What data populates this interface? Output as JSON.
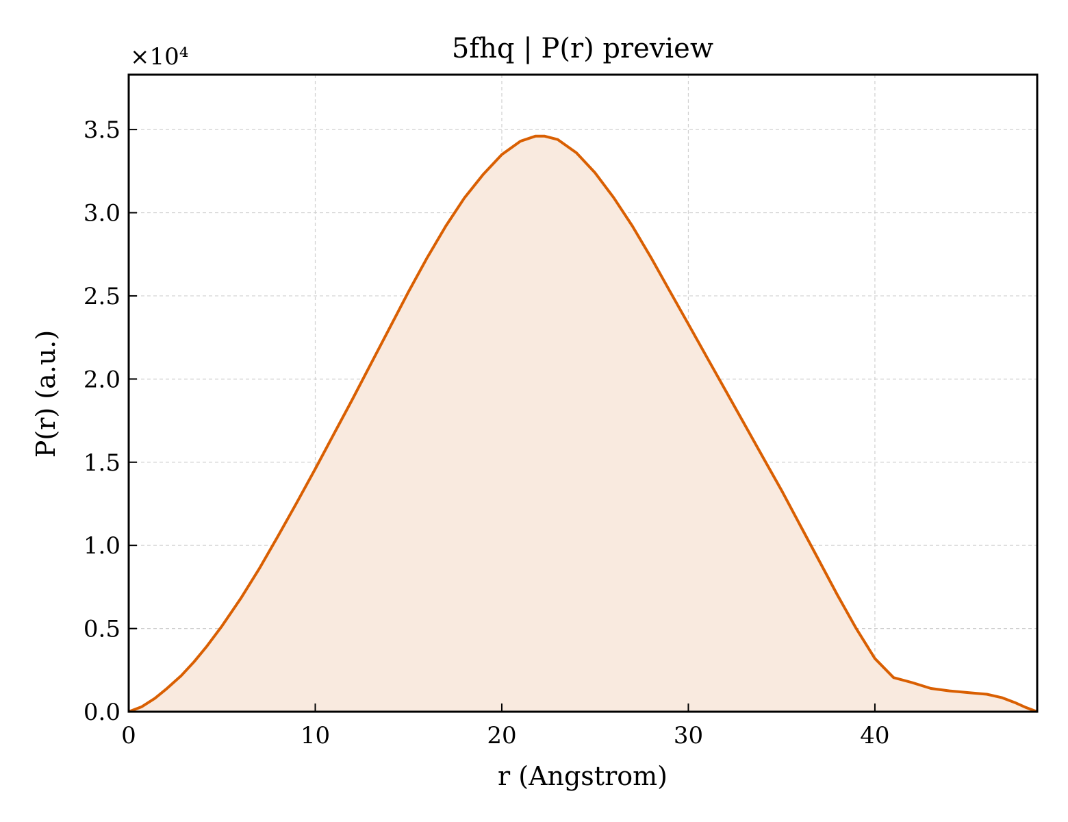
{
  "chart_data": {
    "type": "area",
    "title": "5fhq | P(r) preview",
    "xlabel": "r (Angstrom)",
    "ylabel": "P(r) (a.u.)",
    "y_multiplier_label": "×10⁴",
    "y_scale_factor": 10000,
    "xlim": [
      0,
      48.7
    ],
    "ylim": [
      0,
      38300
    ],
    "x_ticks": [
      0,
      10,
      20,
      30,
      40
    ],
    "x_tick_labels": [
      "0",
      "10",
      "20",
      "30",
      "40"
    ],
    "y_ticks": [
      0,
      5000,
      10000,
      15000,
      20000,
      25000,
      30000,
      35000
    ],
    "y_tick_labels": [
      "0.0",
      "0.5",
      "1.0",
      "1.5",
      "2.0",
      "2.5",
      "3.0",
      "3.5"
    ],
    "grid": true,
    "line_color": "#d95f02",
    "fill_color": "#f9eadf",
    "series": [
      {
        "x": [
          0,
          0.7,
          1.4,
          2.0,
          2.8,
          3.5,
          4.2,
          5.0,
          6.0,
          7.0,
          8.0,
          9.0,
          10.0,
          11.0,
          12.0,
          13.0,
          14.0,
          15.0,
          16.0,
          17.0,
          18.0,
          19.0,
          20.0,
          21.0,
          21.8,
          22.3,
          23.0,
          24.0,
          25.0,
          26.0,
          27.0,
          28.0,
          29.0,
          30.0,
          31.0,
          32.0,
          33.0,
          34.0,
          35.0,
          36.0,
          37.0,
          38.0,
          39.0,
          40.0,
          41.0,
          42.0,
          43.0,
          44.0,
          45.0,
          46.0,
          46.8,
          47.5,
          48.1,
          48.7
        ],
        "y": [
          0,
          300,
          800,
          1350,
          2150,
          3000,
          3950,
          5150,
          6800,
          8600,
          10550,
          12550,
          14600,
          16700,
          18800,
          20950,
          23100,
          25250,
          27300,
          29200,
          30900,
          32300,
          33500,
          34300,
          34600,
          34600,
          34400,
          33600,
          32400,
          30900,
          29200,
          27300,
          25300,
          23300,
          21300,
          19300,
          17300,
          15300,
          13300,
          11200,
          9100,
          7000,
          5000,
          3200,
          2050,
          1750,
          1400,
          1250,
          1150,
          1050,
          850,
          550,
          250,
          0
        ]
      }
    ]
  }
}
